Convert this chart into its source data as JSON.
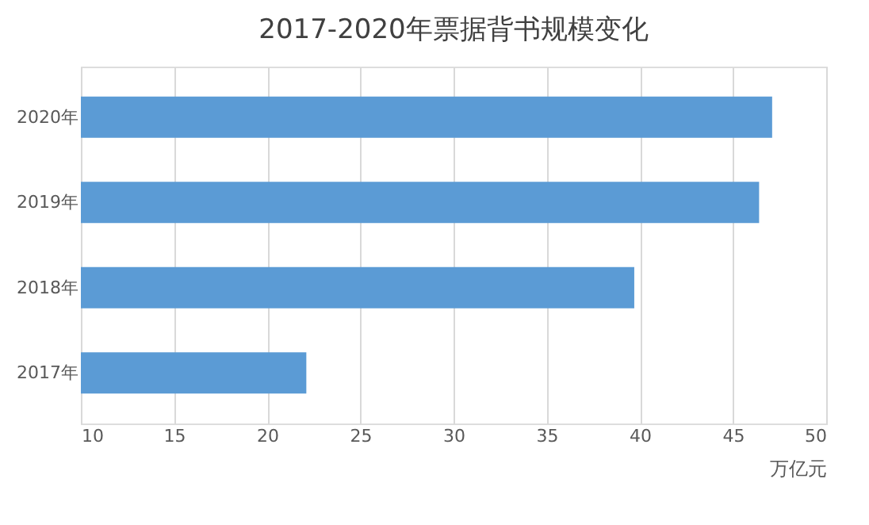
{
  "chart_data": {
    "type": "bar",
    "orientation": "horizontal",
    "title": "2017-2020年票据背书规模变化",
    "xlabel": "万亿元",
    "categories": [
      "2020年",
      "2019年",
      "2018年",
      "2017年"
    ],
    "values": [
      47.1,
      46.4,
      39.7,
      22.1
    ],
    "color": "#5b9bd5",
    "xlim": [
      10,
      50
    ],
    "xticks": [
      10,
      15,
      20,
      25,
      30,
      35,
      40,
      45,
      50
    ],
    "grid": "x"
  }
}
